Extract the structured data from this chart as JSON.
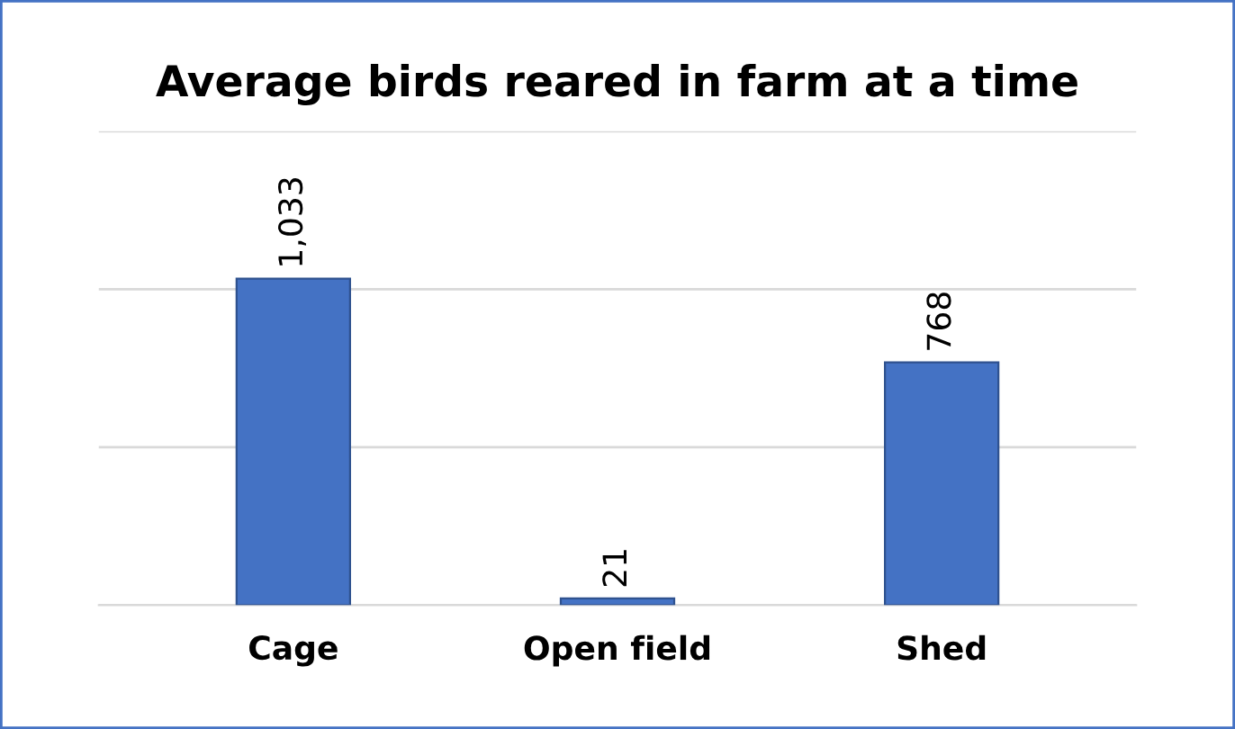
{
  "chart_data": {
    "type": "bar",
    "title": "Average birds reared in farm at a time",
    "categories": [
      "Cage",
      "Open field",
      "Shed"
    ],
    "values": [
      1033,
      21,
      768
    ],
    "value_labels": [
      "1,033",
      "21",
      "768"
    ],
    "color": "#4472c4",
    "ylim": [
      0,
      1500
    ],
    "yticks": [
      {
        "value": 0,
        "label": null
      },
      {
        "value": 500,
        "label": null
      },
      {
        "value": 1000,
        "label": null
      },
      {
        "value": 1500,
        "label": null
      }
    ],
    "grid": "y",
    "tick_labels": "x"
  }
}
